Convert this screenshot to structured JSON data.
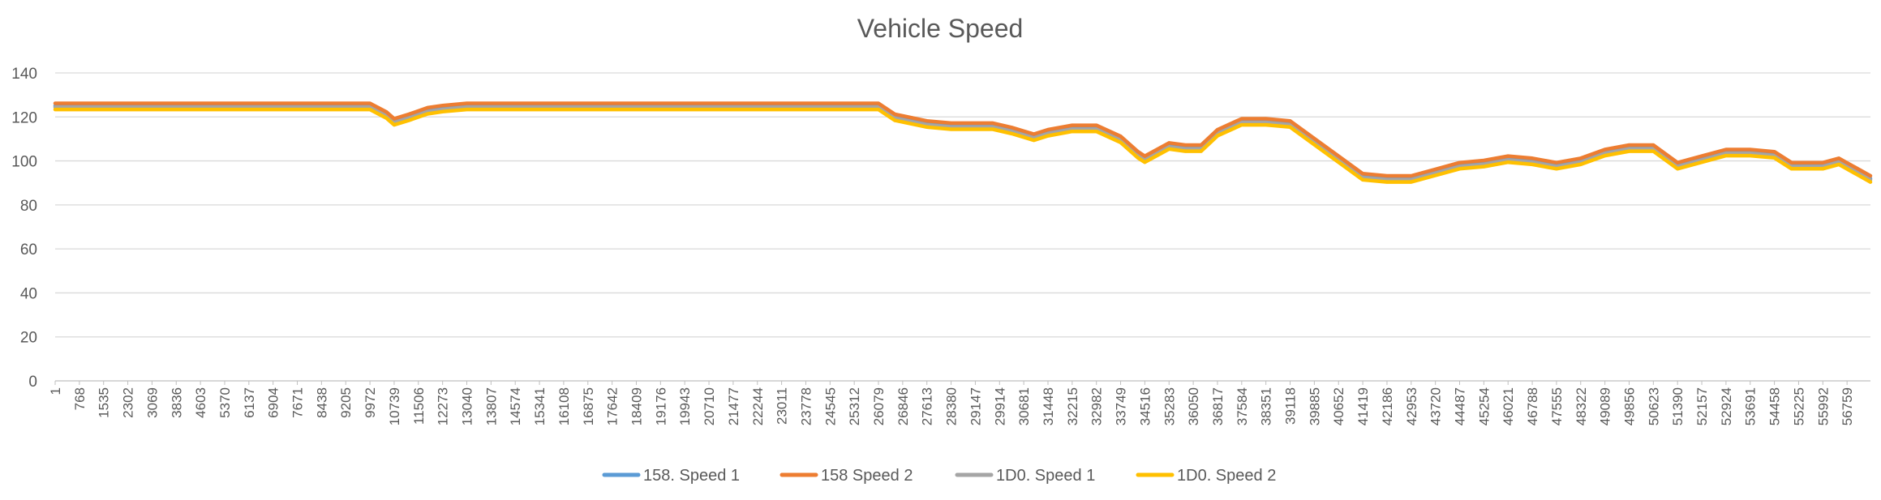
{
  "chart_data": {
    "type": "line",
    "title": "Vehicle Speed",
    "xlabel": "",
    "ylabel": "",
    "ylim": [
      0,
      140
    ],
    "yticks": [
      0,
      20,
      40,
      60,
      80,
      100,
      120,
      140
    ],
    "xlim": [
      1,
      57500
    ],
    "x_tick_labels": [
      "1",
      "768",
      "1535",
      "2302",
      "3069",
      "3836",
      "4603",
      "5370",
      "6137",
      "6904",
      "7671",
      "8438",
      "9205",
      "9972",
      "10739",
      "11506",
      "12273",
      "13040",
      "13807",
      "14574",
      "15341",
      "16108",
      "16875",
      "17642",
      "18409",
      "19176",
      "19943",
      "20710",
      "21477",
      "22244",
      "23011",
      "23778",
      "24545",
      "25312",
      "26079",
      "26846",
      "27613",
      "28380",
      "29147",
      "29914",
      "30681",
      "31448",
      "32215",
      "32982",
      "33749",
      "34516",
      "35283",
      "36050",
      "36817",
      "37584",
      "38351",
      "39118",
      "39885",
      "40652",
      "41419",
      "42186",
      "42953",
      "43720",
      "44487",
      "45254",
      "46021",
      "46788",
      "47555",
      "48322",
      "49089",
      "49856",
      "50623",
      "51390",
      "52157",
      "52924",
      "53691",
      "54458",
      "55225",
      "55992",
      "56759"
    ],
    "grid": true,
    "legend_position": "bottom",
    "series": [
      {
        "name": "158. Speed 1",
        "color": "#5B9BD5",
        "offset": 0
      },
      {
        "name": "158 Speed 2",
        "color": "#ED7D31",
        "offset": 1.2
      },
      {
        "name": "1D0. Speed 1",
        "color": "#A5A5A5",
        "offset": -0.6
      },
      {
        "name": "1D0. Speed 2",
        "color": "#FFC000",
        "offset": -1.6
      }
    ],
    "profile": {
      "x": [
        1,
        2000,
        4000,
        6000,
        8000,
        9972,
        10500,
        10739,
        11200,
        11800,
        12273,
        13040,
        15000,
        18000,
        20000,
        22244,
        24000,
        26079,
        26600,
        27613,
        28380,
        29147,
        29700,
        30300,
        31000,
        31448,
        32215,
        32982,
        33749,
        34300,
        34516,
        35283,
        35800,
        36300,
        36817,
        37584,
        38351,
        39118,
        39885,
        40652,
        41419,
        42186,
        42953,
        43720,
        44487,
        45254,
        46021,
        46788,
        47555,
        48322,
        49089,
        49856,
        50623,
        51390,
        52157,
        52924,
        53691,
        54458,
        55000,
        55992,
        56500,
        57500
      ],
      "y": [
        125,
        125,
        125,
        125,
        125,
        125,
        121,
        118,
        120,
        123,
        124,
        125,
        125,
        125,
        125,
        125,
        125,
        125,
        120,
        117,
        116,
        116,
        116,
        114,
        111,
        113,
        115,
        115,
        110,
        103,
        101,
        107,
        106,
        106,
        113,
        118,
        118,
        117,
        109,
        101,
        93,
        92,
        92,
        95,
        98,
        99,
        101,
        100,
        98,
        100,
        104,
        106,
        106,
        98,
        101,
        104,
        104,
        103,
        98,
        98,
        100,
        92
      ]
    }
  }
}
